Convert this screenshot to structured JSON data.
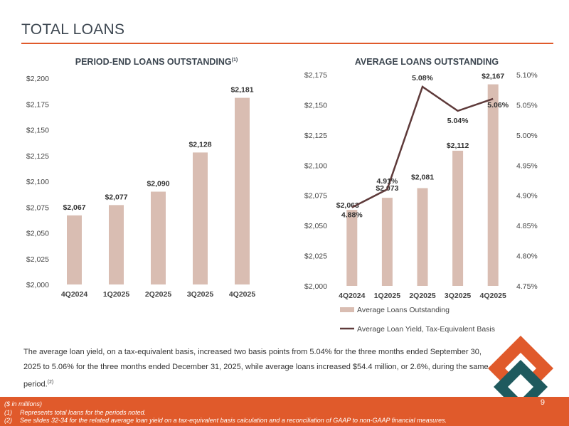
{
  "title": "TOTAL LOANS",
  "left_chart_title": "PERIOD-END LOANS OUTSTANDING",
  "left_chart_title_sup": "(1)",
  "right_chart_title": "AVERAGE LOANS OUTSTANDING",
  "body_text": "The average loan yield, on a tax-equivalent basis, increased two basis points from 5.04% for the three months ended September 30, 2025 to 5.06% for the three months ended December 31, 2025, while average loans increased $54.4 million, or 2.6%, during the same period.",
  "body_text_sup": "(2)",
  "footnotes": {
    "units": "($ in millions)",
    "note1_num": "(1)",
    "note1_text": "Represents total loans for the periods noted.",
    "note2_num": "(2)",
    "note2_text": "See slides 32-34 for the related average loan yield on a tax-equivalent basis calculation and a reconciliation of GAAP to non-GAAP financial measures."
  },
  "page_number": "9",
  "colors": {
    "accent": "#e05a2b",
    "bar": "#d9bdb2",
    "line": "#5e3a3a",
    "logo_teal": "#1f5a5e"
  },
  "chart_data": [
    {
      "type": "bar",
      "title": "PERIOD-END LOANS OUTSTANDING",
      "categories": [
        "4Q2024",
        "1Q2025",
        "2Q2025",
        "3Q2025",
        "4Q2025"
      ],
      "values": [
        2067,
        2077,
        2090,
        2128,
        2181
      ],
      "value_labels": [
        "$2,067",
        "$2,077",
        "$2,090",
        "$2,128",
        "$2,181"
      ],
      "ylim": [
        2000,
        2200
      ],
      "yticks": [
        2000,
        2025,
        2050,
        2075,
        2100,
        2125,
        2150,
        2175,
        2200
      ],
      "ytick_labels": [
        "$2,000",
        "$2,025",
        "$2,050",
        "$2,075",
        "$2,100",
        "$2,125",
        "$2,150",
        "$2,175",
        "$2,200"
      ],
      "grid": false
    },
    {
      "type": "bar",
      "title": "AVERAGE LOANS OUTSTANDING",
      "categories": [
        "4Q2024",
        "1Q2025",
        "2Q2025",
        "3Q2025",
        "4Q2025"
      ],
      "series": [
        {
          "name": "Average Loans Outstanding",
          "type": "bar",
          "axis": "left",
          "values": [
            2063,
            2073,
            2081,
            2112,
            2167
          ],
          "value_labels": [
            "$2,063",
            "$2,073",
            "$2,081",
            "$2,112",
            "$2,167"
          ]
        },
        {
          "name": "Average Loan Yield, Tax-Equivalent Basis",
          "type": "line",
          "axis": "right",
          "values": [
            4.88,
            4.91,
            5.08,
            5.04,
            5.06
          ],
          "value_labels": [
            "4.88%",
            "4.91%",
            "5.08%",
            "5.04%",
            "5.06%"
          ]
        }
      ],
      "ylim": [
        2000,
        2175
      ],
      "yticks": [
        2000,
        2025,
        2050,
        2075,
        2100,
        2125,
        2150,
        2175
      ],
      "ytick_labels": [
        "$2,000",
        "$2,025",
        "$2,050",
        "$2,075",
        "$2,100",
        "$2,125",
        "$2,150",
        "$2,175"
      ],
      "y2lim": [
        4.75,
        5.1
      ],
      "y2ticks": [
        4.75,
        4.8,
        4.85,
        4.9,
        4.95,
        5.0,
        5.05,
        5.1
      ],
      "y2tick_labels": [
        "4.75%",
        "4.80%",
        "4.85%",
        "4.90%",
        "4.95%",
        "5.00%",
        "5.05%",
        "5.10%"
      ],
      "legend": "bottom",
      "grid": false
    }
  ]
}
